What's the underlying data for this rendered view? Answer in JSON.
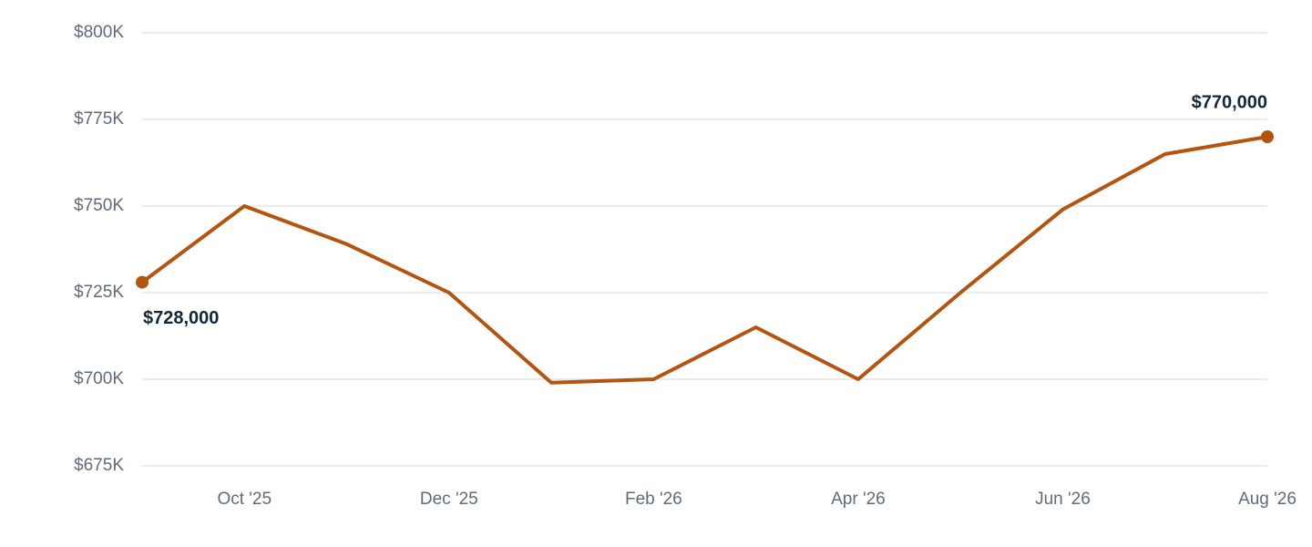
{
  "chart_data": {
    "type": "line",
    "categories": [
      null,
      "Oct '25",
      null,
      "Dec '25",
      null,
      "Feb '26",
      null,
      "Apr '26",
      null,
      "Jun '26",
      null,
      "Aug '26"
    ],
    "values": [
      728000,
      750000,
      739000,
      725000,
      699000,
      700000,
      715000,
      700000,
      725000,
      749000,
      765000,
      770000
    ],
    "value_labels": [
      "$728,000",
      null,
      null,
      null,
      null,
      null,
      null,
      null,
      null,
      null,
      null,
      "$770,000"
    ],
    "color": "#b5540f",
    "ylim": [
      675000,
      800000
    ],
    "yticks": [
      {
        "value": 675000,
        "label": "$675K"
      },
      {
        "value": 700000,
        "label": "$700K"
      },
      {
        "value": 725000,
        "label": "$725K"
      },
      {
        "value": 750000,
        "label": "$750K"
      },
      {
        "value": 775000,
        "label": "$775K"
      },
      {
        "value": 800000,
        "label": "$800K"
      }
    ],
    "grid": true
  }
}
